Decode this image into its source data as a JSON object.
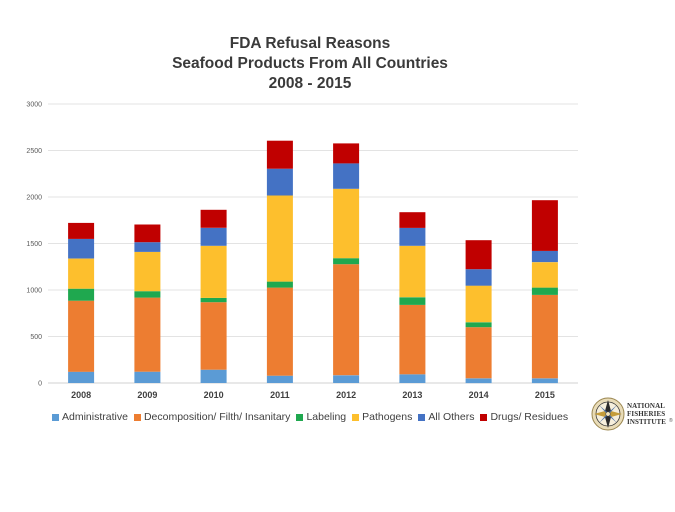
{
  "chart_data": {
    "type": "bar",
    "stacked": true,
    "title": "FDA Refusal Reasons",
    "subtitle": "Seafood Products From All Countries",
    "subtitle2": "2008 - 2015",
    "xlabel": "",
    "ylabel": "",
    "ylim": [
      0,
      3000
    ],
    "yticks": [
      "0",
      "500",
      "1000",
      "1500",
      "2000",
      "2500",
      "3000"
    ],
    "ytick_values": [
      0,
      500,
      1000,
      1500,
      2000,
      2500,
      3000
    ],
    "grid": true,
    "legend_position": "bottom",
    "categories": [
      "2008",
      "2009",
      "2010",
      "2011",
      "2012",
      "2013",
      "2014",
      "2015"
    ],
    "series": [
      {
        "name": "Administrative",
        "color": "#5b9bd5",
        "values": [
          121,
          121,
          143,
          79,
          83,
          94,
          50,
          50
        ]
      },
      {
        "name": "Decomposition/ Filth/ Insanitary",
        "color": "#ed7d31",
        "values": [
          764,
          797,
          726,
          947,
          1194,
          746,
          550,
          897
        ]
      },
      {
        "name": "Labeling",
        "color": "#1fa84f",
        "values": [
          129,
          69,
          46,
          64,
          65,
          82,
          53,
          79
        ]
      },
      {
        "name": "Pathogens",
        "color": "#fdbf2d",
        "values": [
          324,
          423,
          560,
          926,
          746,
          553,
          394,
          273
        ]
      },
      {
        "name": "All Others",
        "color": "#4472c4",
        "values": [
          212,
          104,
          193,
          288,
          273,
          193,
          177,
          122
        ]
      },
      {
        "name": "Drugs/ Residues",
        "color": "#c00000",
        "values": [
          172,
          190,
          194,
          301,
          215,
          169,
          312,
          545
        ]
      }
    ]
  },
  "logo": {
    "line1": "NATIONAL",
    "line2": "FISHERIES",
    "line3": "INSTITUTE",
    "registered": "®"
  }
}
